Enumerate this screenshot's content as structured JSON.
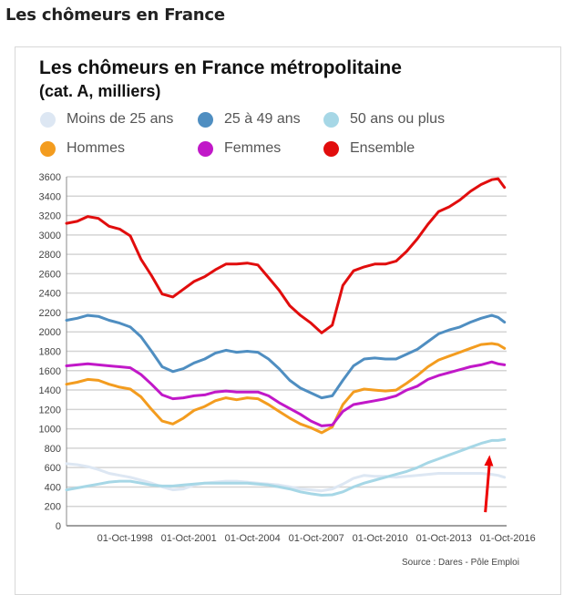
{
  "page": {
    "heading": "Les chômeurs en France"
  },
  "chart_data": {
    "type": "line",
    "title": "Les chômeurs en France métropolitaine",
    "subtitle": "(cat. A, milliers)",
    "xlabel": "",
    "ylabel": "",
    "ylim": [
      0,
      3600
    ],
    "yticks": [
      0,
      200,
      400,
      600,
      800,
      1000,
      1200,
      1400,
      1600,
      1800,
      2000,
      2200,
      2400,
      2600,
      2800,
      3000,
      3200,
      3400,
      3600
    ],
    "xlim": [
      1996.0,
      2016.7
    ],
    "xticks": [
      {
        "x": 1998.75,
        "label": "01-Oct-1998"
      },
      {
        "x": 2001.75,
        "label": "01-Oct-2001"
      },
      {
        "x": 2004.75,
        "label": "01-Oct-2004"
      },
      {
        "x": 2007.75,
        "label": "01-Oct-2007"
      },
      {
        "x": 2010.75,
        "label": "01-Oct-2010"
      },
      {
        "x": 2013.75,
        "label": "01-Oct-2013"
      },
      {
        "x": 2016.75,
        "label": "01-Oct-2016"
      }
    ],
    "grid": true,
    "legend_position": "top",
    "source": "Source : Dares - Pôle Emploi",
    "x": [
      1996.0,
      1996.5,
      1997.0,
      1997.5,
      1998.0,
      1998.5,
      1999.0,
      1999.5,
      2000.0,
      2000.5,
      2001.0,
      2001.5,
      2002.0,
      2002.5,
      2003.0,
      2003.5,
      2004.0,
      2004.5,
      2005.0,
      2005.5,
      2006.0,
      2006.5,
      2007.0,
      2007.5,
      2008.0,
      2008.5,
      2009.0,
      2009.5,
      2010.0,
      2010.5,
      2011.0,
      2011.5,
      2012.0,
      2012.5,
      2013.0,
      2013.5,
      2014.0,
      2014.5,
      2015.0,
      2015.5,
      2016.0,
      2016.3,
      2016.6
    ],
    "series": [
      {
        "name": "Moins de 25 ans",
        "color": "#dde7f3",
        "values": [
          640,
          630,
          610,
          580,
          540,
          520,
          500,
          470,
          440,
          400,
          370,
          380,
          420,
          440,
          450,
          460,
          460,
          450,
          440,
          430,
          420,
          400,
          380,
          370,
          360,
          380,
          430,
          490,
          520,
          510,
          510,
          500,
          510,
          520,
          530,
          540,
          540,
          540,
          540,
          540,
          530,
          520,
          500
        ]
      },
      {
        "name": "25 à 49 ans",
        "color": "#4f8ec1",
        "values": [
          2120,
          2140,
          2170,
          2160,
          2120,
          2090,
          2050,
          1950,
          1800,
          1640,
          1590,
          1620,
          1680,
          1720,
          1780,
          1810,
          1790,
          1800,
          1790,
          1720,
          1620,
          1500,
          1420,
          1370,
          1320,
          1340,
          1500,
          1650,
          1720,
          1730,
          1720,
          1720,
          1770,
          1820,
          1900,
          1980,
          2020,
          2050,
          2100,
          2140,
          2170,
          2150,
          2100
        ]
      },
      {
        "name": "50 ans ou plus",
        "color": "#a6d7e6",
        "values": [
          370,
          390,
          410,
          430,
          450,
          460,
          460,
          440,
          420,
          410,
          410,
          420,
          430,
          440,
          440,
          440,
          440,
          440,
          430,
          420,
          400,
          380,
          350,
          330,
          315,
          320,
          350,
          400,
          440,
          470,
          500,
          530,
          560,
          600,
          650,
          690,
          730,
          770,
          810,
          850,
          880,
          880,
          890
        ]
      },
      {
        "name": "Hommes",
        "color": "#f39c1f",
        "values": [
          1460,
          1480,
          1510,
          1500,
          1460,
          1430,
          1410,
          1330,
          1200,
          1080,
          1050,
          1110,
          1190,
          1230,
          1290,
          1320,
          1300,
          1320,
          1310,
          1250,
          1180,
          1110,
          1050,
          1010,
          960,
          1020,
          1250,
          1380,
          1410,
          1400,
          1390,
          1400,
          1470,
          1550,
          1640,
          1710,
          1750,
          1790,
          1830,
          1870,
          1880,
          1870,
          1830
        ]
      },
      {
        "name": "Femmes",
        "color": "#c118c8",
        "values": [
          1650,
          1660,
          1670,
          1660,
          1650,
          1640,
          1630,
          1560,
          1460,
          1350,
          1310,
          1320,
          1340,
          1350,
          1380,
          1390,
          1380,
          1380,
          1380,
          1340,
          1270,
          1210,
          1150,
          1080,
          1030,
          1040,
          1180,
          1250,
          1270,
          1290,
          1310,
          1340,
          1400,
          1440,
          1510,
          1550,
          1580,
          1610,
          1640,
          1660,
          1690,
          1670,
          1660
        ]
      },
      {
        "name": "Ensemble",
        "color": "#e10d0d",
        "values": [
          3120,
          3140,
          3190,
          3170,
          3090,
          3060,
          2990,
          2750,
          2580,
          2390,
          2360,
          2440,
          2520,
          2570,
          2640,
          2700,
          2700,
          2710,
          2690,
          2560,
          2430,
          2270,
          2170,
          2090,
          1990,
          2070,
          2480,
          2630,
          2670,
          2700,
          2700,
          2730,
          2830,
          2960,
          3110,
          3240,
          3290,
          3360,
          3450,
          3520,
          3570,
          3580,
          3490
        ]
      }
    ],
    "annotations": [
      {
        "type": "arrow",
        "color": "#ee0000",
        "from": {
          "x": 2015.7,
          "y": 140
        },
        "to": {
          "x": 2015.9,
          "y": 730
        },
        "points_to": "50 ans ou plus"
      }
    ]
  }
}
